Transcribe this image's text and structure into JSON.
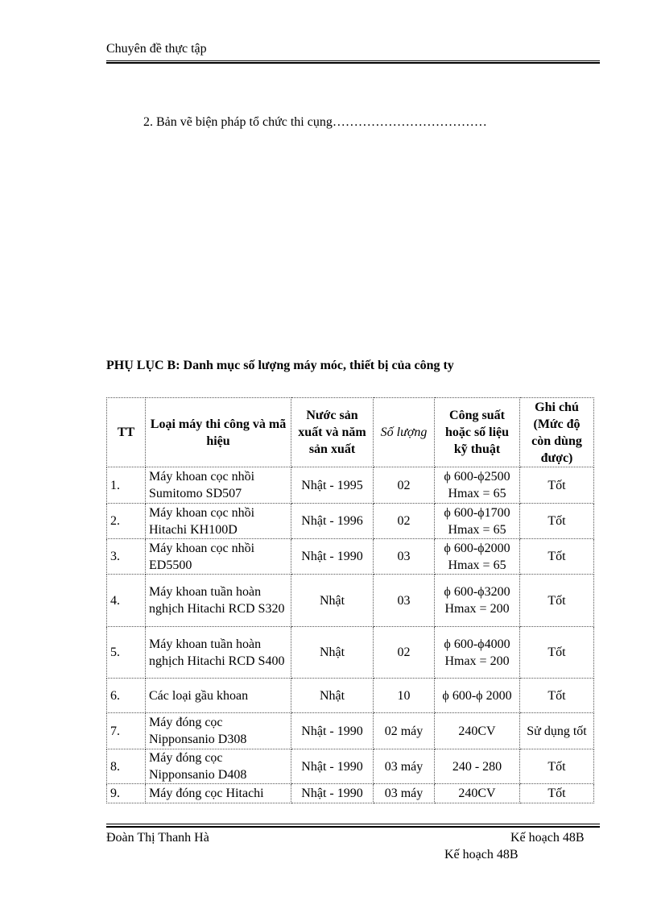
{
  "header": {
    "title": "Chuyên  đề thực tập"
  },
  "section_item": "2. Bản vẽ biện pháp  tổ  chức thi cụng………………………………",
  "appendix_title": "PHỤ LỤC B:  Danh  mục số lượng  máy móc, thiết bị của công ty",
  "table": {
    "headers": [
      "TT",
      "Loại máy thi công và mã hiệu",
      "Nước sản xuất và năm sản xuất",
      "Số lượng",
      "Công suất hoặc số liệu kỹ thuật",
      "Ghi chú (Mức độ còn dùng được)"
    ],
    "rows": [
      [
        "1.",
        "Máy khoan  cọc nhồi Sumitomo SD507",
        "Nhật - 1995",
        "02",
        "ϕ 600-ϕ2500 Hmax = 65",
        "Tốt"
      ],
      [
        "2.",
        "Máy khoan  cọc nhồi Hitachi KH100D",
        "Nhật - 1996",
        "02",
        "ϕ 600-ϕ1700 Hmax = 65",
        "Tốt"
      ],
      [
        "3.",
        "Máy khoan  cọc nhồi ED5500",
        "Nhật - 1990",
        "03",
        "ϕ 600-ϕ2000 Hmax = 65",
        "Tốt"
      ],
      [
        "4.",
        "Máy khoan tuần hoàn nghịch Hitachi RCD S320",
        "Nhật",
        "03",
        "ϕ 600-ϕ3200 Hmax = 200",
        "Tốt"
      ],
      [
        "5.",
        "Máy khoan tuần hoàn nghịch Hitachi RCD S400",
        "Nhật",
        "02",
        "ϕ 600-ϕ4000 Hmax = 200",
        "Tốt"
      ],
      [
        "6.",
        "Các loại gầu khoan",
        "Nhật",
        "10",
        "ϕ 600-ϕ 2000",
        "Tốt"
      ],
      [
        "7.",
        "Máy đóng cọc Nipponsanio  D308",
        "Nhật - 1990",
        "02 máy",
        "240CV",
        "Sử dụng tốt"
      ],
      [
        "8.",
        "Máy đóng cọc Nipponsanio  D408",
        "Nhật - 1990",
        "03 máy",
        "240 - 280",
        "Tốt"
      ],
      [
        "9.",
        "Máy đóng cọc Hitachi",
        "Nhật - 1990",
        "03 máy",
        "240CV",
        "Tốt"
      ]
    ]
  },
  "footer": {
    "author": "Đoàn Thị  Thanh  Hà",
    "class_right": "Kế hoạch 48B",
    "class_below": "Kế hoạch 48B"
  }
}
